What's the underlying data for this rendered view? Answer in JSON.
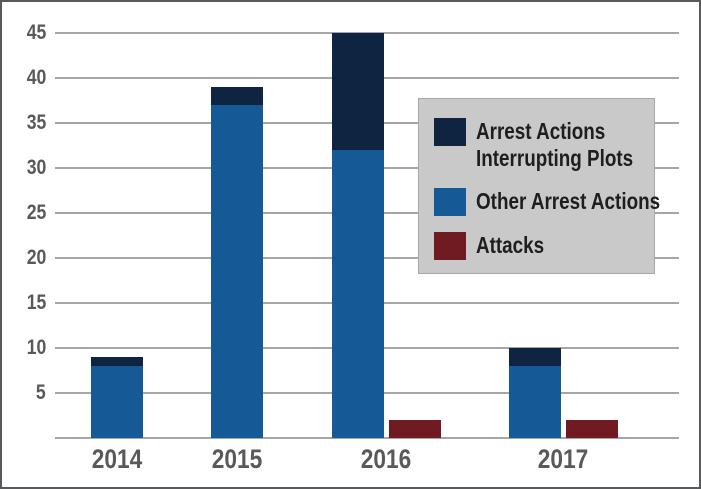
{
  "chart_data": {
    "type": "bar",
    "variant": "stacked-bars-with-adjacent-attacks-bar",
    "title": "",
    "categories": [
      "2014",
      "2015",
      "2016",
      "2017"
    ],
    "series": [
      {
        "name": "Arrest Actions Interrupting Plots",
        "color": "#0e2440",
        "role": "stack-top",
        "values": [
          1,
          2,
          13,
          2
        ]
      },
      {
        "name": "Other Arrest Actions",
        "color": "#155a96",
        "role": "stack-base",
        "values": [
          8,
          37,
          32,
          8
        ]
      },
      {
        "name": "Attacks",
        "color": "#701b22",
        "role": "adjacent",
        "values": [
          0,
          0,
          2,
          2
        ]
      }
    ],
    "stack_totals": [
      9,
      39,
      45,
      10
    ],
    "ylim": [
      0,
      45
    ],
    "ytick_step": 5,
    "ytick_labels": [
      "5",
      "10",
      "15",
      "20",
      "25",
      "30",
      "35",
      "40",
      "45"
    ],
    "grid": true,
    "legend_position": "upper-right",
    "colors": {
      "gridline": "#a6a6a6",
      "axis_text": "#58595b",
      "legend_background": "#c9c9c9",
      "legend_border": "#a8a8a8",
      "legend_text": "#1e1e1e",
      "frame_border": "#58595b",
      "plot_background": "#ffffff"
    }
  }
}
